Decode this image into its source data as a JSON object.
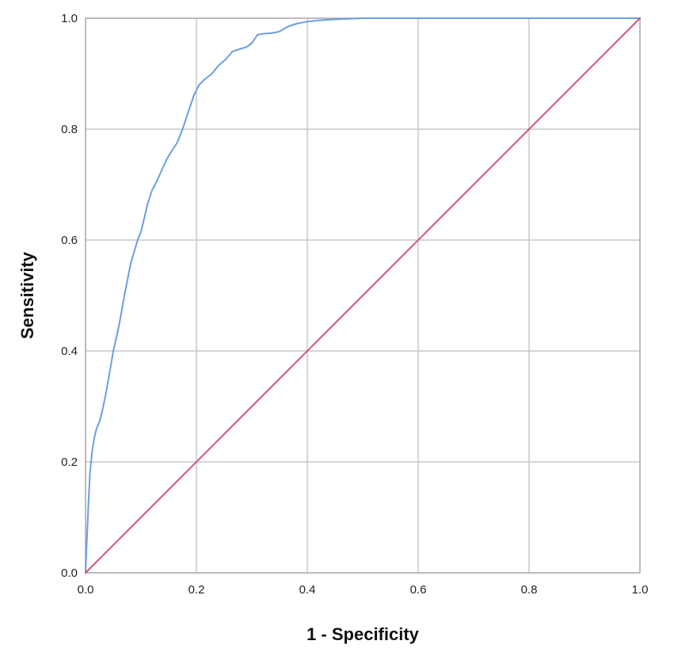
{
  "chart_data": {
    "type": "line",
    "title": "",
    "xlabel": "1 - Specificity",
    "ylabel": "Sensitivity",
    "xlim": [
      0,
      1
    ],
    "ylim": [
      0,
      1
    ],
    "grid": true,
    "legend": "none",
    "x_ticks": [
      "0.0",
      "0.2",
      "0.4",
      "0.6",
      "0.8",
      "1.0"
    ],
    "y_ticks": [
      "0.0",
      "0.2",
      "0.4",
      "0.6",
      "0.8",
      "1.0"
    ],
    "series": [
      {
        "color": "#6a9fdf",
        "points": [
          [
            0.0,
            0.0
          ],
          [
            0.002,
            0.05
          ],
          [
            0.005,
            0.12
          ],
          [
            0.008,
            0.18
          ],
          [
            0.012,
            0.22
          ],
          [
            0.016,
            0.245
          ],
          [
            0.02,
            0.26
          ],
          [
            0.026,
            0.275
          ],
          [
            0.032,
            0.3
          ],
          [
            0.038,
            0.33
          ],
          [
            0.045,
            0.37
          ],
          [
            0.05,
            0.4
          ],
          [
            0.057,
            0.43
          ],
          [
            0.063,
            0.46
          ],
          [
            0.07,
            0.5
          ],
          [
            0.076,
            0.53
          ],
          [
            0.082,
            0.56
          ],
          [
            0.088,
            0.58
          ],
          [
            0.094,
            0.6
          ],
          [
            0.1,
            0.615
          ],
          [
            0.106,
            0.64
          ],
          [
            0.112,
            0.665
          ],
          [
            0.12,
            0.69
          ],
          [
            0.128,
            0.705
          ],
          [
            0.137,
            0.725
          ],
          [
            0.146,
            0.745
          ],
          [
            0.155,
            0.76
          ],
          [
            0.165,
            0.775
          ],
          [
            0.175,
            0.8
          ],
          [
            0.185,
            0.83
          ],
          [
            0.195,
            0.86
          ],
          [
            0.205,
            0.88
          ],
          [
            0.215,
            0.89
          ],
          [
            0.228,
            0.9
          ],
          [
            0.24,
            0.915
          ],
          [
            0.252,
            0.925
          ],
          [
            0.265,
            0.94
          ],
          [
            0.28,
            0.945
          ],
          [
            0.29,
            0.948
          ],
          [
            0.3,
            0.955
          ],
          [
            0.31,
            0.97
          ],
          [
            0.32,
            0.972
          ],
          [
            0.335,
            0.973
          ],
          [
            0.35,
            0.976
          ],
          [
            0.365,
            0.985
          ],
          [
            0.38,
            0.99
          ],
          [
            0.4,
            0.994
          ],
          [
            0.42,
            0.996
          ],
          [
            0.45,
            0.998
          ],
          [
            0.5,
            1.0
          ],
          [
            0.6,
            1.0
          ],
          [
            0.8,
            1.0
          ],
          [
            1.0,
            1.0
          ]
        ]
      },
      {
        "color": "#cc5577",
        "points": [
          [
            0.0,
            0.0
          ],
          [
            1.0,
            1.0
          ]
        ]
      }
    ]
  }
}
